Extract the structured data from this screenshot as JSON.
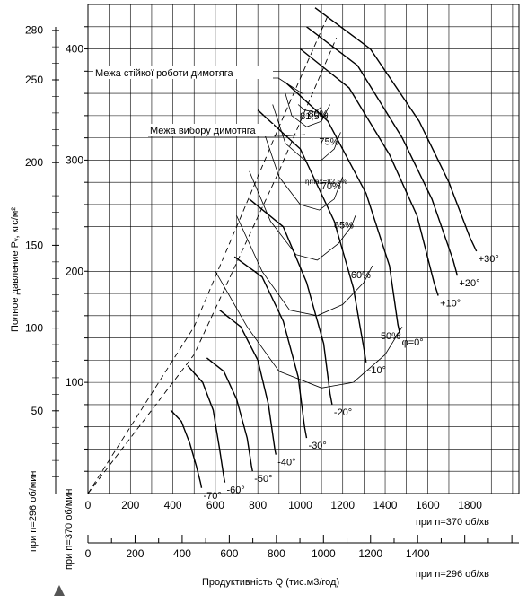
{
  "chart_data": {
    "type": "line",
    "title": "",
    "ylabel": "Полное давление  Pᵥ, кгс/м²",
    "ylabel_296": "при n=296 об/мин",
    "ylabel_370": "при n=370 об/мин",
    "xlabel": "Продуктивність Q (тис.м3/год)",
    "x_axis_370": {
      "label": "при n=370 об/хв",
      "ticks": [
        "0",
        "200",
        "400",
        "600",
        "800",
        "1000",
        "1200",
        "1400",
        "1600",
        "1800"
      ],
      "range": [
        0,
        2030
      ]
    },
    "x_axis_296": {
      "label": "при n=296 об/хв",
      "ticks": [
        "0",
        "200",
        "400",
        "600",
        "800",
        "1000",
        "1200",
        "1400"
      ],
      "range": [
        0,
        1830
      ]
    },
    "y_axis_370": {
      "ticks": [
        "100",
        "200",
        "300",
        "400"
      ],
      "range": [
        0,
        440
      ]
    },
    "y_axis_296": {
      "ticks": [
        "50",
        "100",
        "150",
        "200",
        "250",
        "280"
      ],
      "range": [
        0,
        282
      ]
    },
    "grid": true,
    "annotations": {
      "stability_limit": "Межа стійкої роботи димотяга",
      "selection_limit": "Межа вибору димотяга",
      "eta_max": "ηmax=82,5%"
    },
    "vane_curves": [
      {
        "label": "+30°",
        "points": [
          [
            1070,
            437
          ],
          [
            1330,
            400
          ],
          [
            1560,
            335
          ],
          [
            1700,
            280
          ],
          [
            1800,
            230
          ],
          [
            1830,
            218
          ]
        ]
      },
      {
        "label": "+20°",
        "points": [
          [
            1030,
            420
          ],
          [
            1270,
            385
          ],
          [
            1480,
            320
          ],
          [
            1620,
            265
          ],
          [
            1720,
            210
          ],
          [
            1740,
            196
          ]
        ]
      },
      {
        "label": "+10°",
        "points": [
          [
            1000,
            400
          ],
          [
            1230,
            365
          ],
          [
            1420,
            305
          ],
          [
            1550,
            250
          ],
          [
            1630,
            190
          ],
          [
            1650,
            178
          ]
        ]
      },
      {
        "label": "φ=0°",
        "points": [
          [
            930,
            370
          ],
          [
            1130,
            335
          ],
          [
            1310,
            270
          ],
          [
            1420,
            205
          ],
          [
            1460,
            152
          ],
          [
            1470,
            143
          ]
        ]
      },
      {
        "label": "-10°",
        "points": [
          [
            800,
            345
          ],
          [
            1000,
            310
          ],
          [
            1160,
            245
          ],
          [
            1250,
            185
          ],
          [
            1300,
            130
          ],
          [
            1310,
            118
          ]
        ]
      },
      {
        "label": "-20°",
        "points": [
          [
            760,
            265
          ],
          [
            920,
            240
          ],
          [
            1030,
            190
          ],
          [
            1110,
            135
          ],
          [
            1140,
            90
          ],
          [
            1150,
            80
          ]
        ]
      },
      {
        "label": "-30°",
        "points": [
          [
            690,
            213
          ],
          [
            820,
            195
          ],
          [
            920,
            155
          ],
          [
            990,
            105
          ],
          [
            1020,
            60
          ],
          [
            1030,
            50
          ]
        ]
      },
      {
        "label": "-40°",
        "points": [
          [
            620,
            165
          ],
          [
            720,
            150
          ],
          [
            800,
            120
          ],
          [
            850,
            80
          ],
          [
            880,
            40
          ],
          [
            885,
            35
          ]
        ]
      },
      {
        "label": "-50°",
        "points": [
          [
            560,
            122
          ],
          [
            640,
            110
          ],
          [
            700,
            85
          ],
          [
            750,
            50
          ],
          [
            770,
            25
          ],
          [
            775,
            20
          ]
        ]
      },
      {
        "label": "-60°",
        "points": [
          [
            470,
            115
          ],
          [
            540,
            100
          ],
          [
            590,
            75
          ],
          [
            620,
            40
          ],
          [
            640,
            15
          ],
          [
            645,
            10
          ]
        ]
      },
      {
        "label": "-70°",
        "points": [
          [
            390,
            75
          ],
          [
            440,
            65
          ],
          [
            480,
            45
          ],
          [
            510,
            25
          ],
          [
            530,
            10
          ],
          [
            535,
            5
          ]
        ]
      }
    ],
    "efficiency_curves": [
      {
        "label": "50%",
        "points": [
          [
            600,
            200
          ],
          [
            750,
            150
          ],
          [
            900,
            110
          ],
          [
            1100,
            95
          ],
          [
            1250,
            100
          ],
          [
            1400,
            125
          ],
          [
            1480,
            150
          ]
        ]
      },
      {
        "label": "60%",
        "points": [
          [
            700,
            250
          ],
          [
            820,
            200
          ],
          [
            950,
            165
          ],
          [
            1080,
            160
          ],
          [
            1200,
            170
          ],
          [
            1300,
            190
          ],
          [
            1340,
            205
          ]
        ]
      },
      {
        "label": "65%",
        "points": [
          [
            760,
            290
          ],
          [
            860,
            245
          ],
          [
            980,
            215
          ],
          [
            1080,
            210
          ],
          [
            1180,
            225
          ],
          [
            1240,
            240
          ],
          [
            1260,
            250
          ]
        ]
      },
      {
        "label": "70%",
        "points": [
          [
            820,
            330
          ],
          [
            900,
            285
          ],
          [
            1000,
            260
          ],
          [
            1090,
            255
          ],
          [
            1160,
            265
          ],
          [
            1200,
            285
          ]
        ]
      },
      {
        "label": "75%",
        "points": [
          [
            870,
            350
          ],
          [
            930,
            315
          ],
          [
            1020,
            300
          ],
          [
            1100,
            300
          ],
          [
            1160,
            310
          ],
          [
            1190,
            325
          ]
        ]
      },
      {
        "label": "80%",
        "points": [
          [
            930,
            360
          ],
          [
            960,
            340
          ],
          [
            1030,
            330
          ],
          [
            1100,
            335
          ],
          [
            1140,
            350
          ]
        ]
      },
      {
        "label": "81,5%",
        "points": [
          [
            990,
            350
          ],
          [
            1020,
            345
          ],
          [
            1070,
            343
          ],
          [
            1100,
            348
          ]
        ]
      }
    ],
    "stability_limit_line": [
      [
        0,
        0
      ],
      [
        500,
        150
      ],
      [
        900,
        330
      ],
      [
        1130,
        430
      ]
    ],
    "selection_limit_line": [
      [
        0,
        0
      ],
      [
        500,
        125
      ],
      [
        900,
        290
      ],
      [
        1170,
        410
      ]
    ]
  },
  "ui": {
    "triangle_icon": "triangle-up-icon"
  }
}
